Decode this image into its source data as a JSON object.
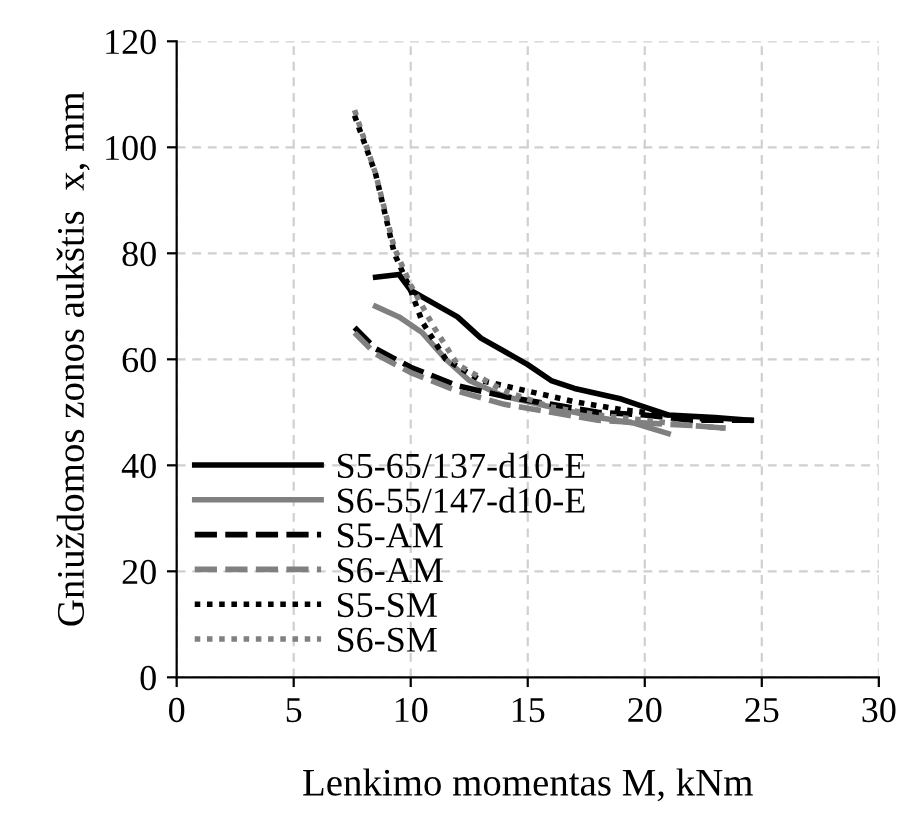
{
  "chart_data": {
    "type": "line",
    "xlabel": "Lenkimo momentas M, kNm",
    "ylabel": "Gniuždomos zonos aukštis  x, mm",
    "xlim": [
      0,
      30
    ],
    "xticks": [
      0,
      5,
      10,
      15,
      20,
      25,
      30
    ],
    "ylim": [
      0,
      120
    ],
    "yticks": [
      0,
      20,
      40,
      60,
      80,
      100,
      120
    ],
    "grid": true,
    "legend": "bottom left",
    "marker": "none",
    "series": [
      {
        "name": "S5-65/137-d10-E",
        "color": "#000000",
        "line_style": "solid",
        "x": [
          8.5,
          9.5,
          10,
          12,
          13,
          15,
          16,
          17,
          19,
          20,
          21,
          23,
          24.5
        ],
        "values": [
          75.5,
          76,
          73,
          68,
          64,
          59,
          56,
          54.5,
          52.5,
          51,
          49.5,
          49,
          48.5
        ]
      },
      {
        "name": "S6-55/147-d10-E",
        "color": "#808080",
        "line_style": "solid",
        "x": [
          8.5,
          9.5,
          10.5,
          11.5,
          12.5,
          14,
          16,
          18,
          19.5,
          21
        ],
        "values": [
          70,
          68,
          65,
          60,
          56,
          53,
          51,
          49,
          48,
          46
        ]
      },
      {
        "name": "S5-AM",
        "color": "#000000",
        "line_style": "dashed",
        "x": [
          7.6,
          8.5,
          10,
          12,
          14,
          16,
          18,
          20,
          22,
          24.8
        ],
        "values": [
          66,
          62,
          58.5,
          55,
          53,
          51.5,
          50,
          49.5,
          48.5,
          48.5
        ]
      },
      {
        "name": "S6-AM",
        "color": "#808080",
        "line_style": "dashed",
        "x": [
          7.6,
          8.5,
          10,
          12,
          14,
          16,
          18,
          20,
          22,
          23.5
        ],
        "values": [
          65,
          61,
          57.5,
          54,
          51.5,
          50,
          48.5,
          48,
          47.5,
          47
        ]
      },
      {
        "name": "S5-SM",
        "color": "#000000",
        "line_style": "dotted",
        "x": [
          7.6,
          8.5,
          9.3,
          10,
          10.5,
          11.5,
          13,
          15,
          17,
          19,
          21,
          23
        ],
        "values": [
          106,
          95,
          80,
          73,
          67,
          60,
          56,
          54,
          52,
          50.5,
          49.5,
          48.5
        ]
      },
      {
        "name": "S6-SM",
        "color": "#808080",
        "line_style": "dotted",
        "x": [
          7.6,
          8.5,
          9.3,
          10,
          11,
          12,
          14,
          16,
          18,
          20,
          22,
          23.5
        ],
        "values": [
          107,
          95,
          81,
          74,
          66,
          59,
          54,
          51,
          49.5,
          48.5,
          47.5,
          47
        ]
      }
    ]
  }
}
